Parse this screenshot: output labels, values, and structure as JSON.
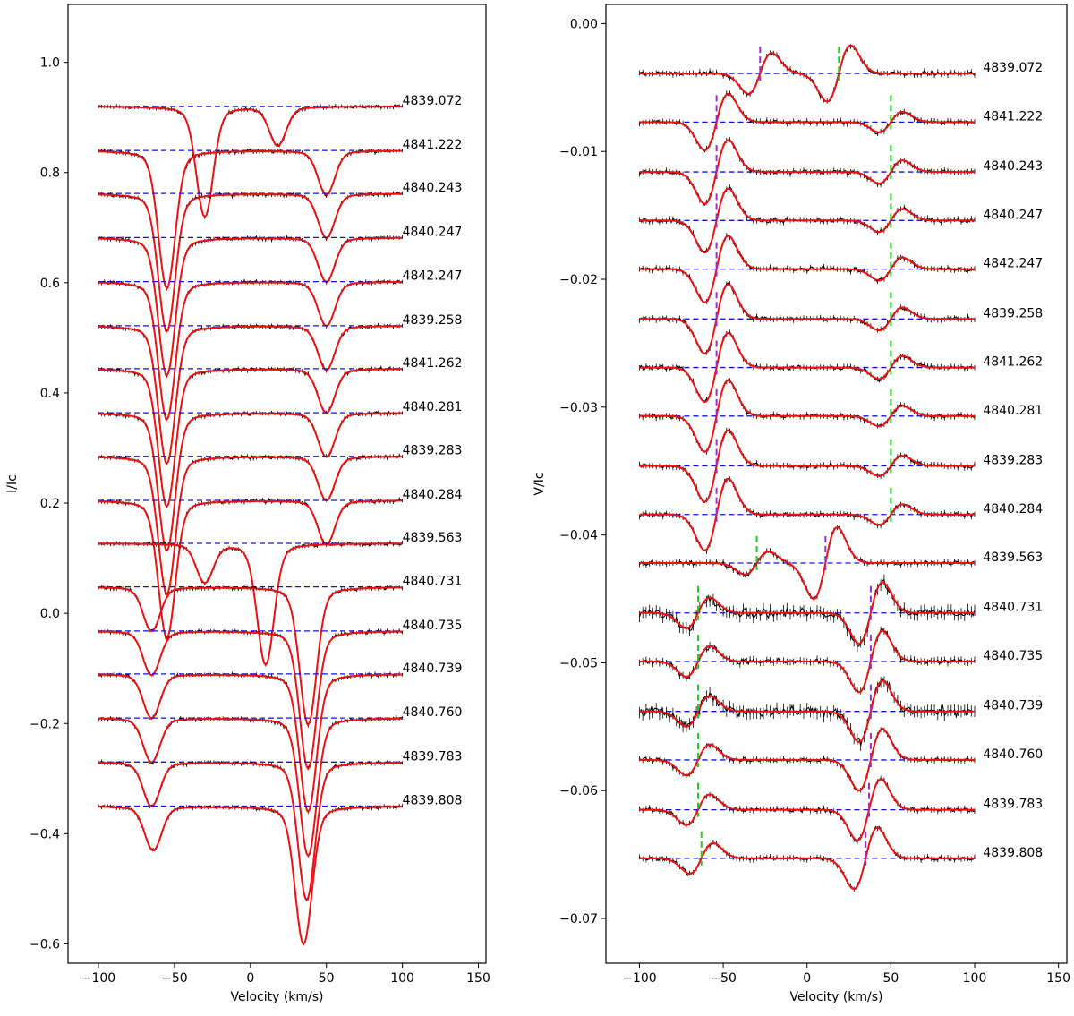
{
  "chart_data": [
    {
      "type": "line",
      "panel": "left",
      "title": "",
      "xlabel": "Velocity (km/s)",
      "ylabel": "I/Ic",
      "xlim": [
        -120,
        155
      ],
      "ylim": [
        -0.635,
        1.105
      ],
      "xticks": [
        -100,
        -50,
        0,
        50,
        100,
        150
      ],
      "yticks": [
        -0.6,
        -0.4,
        -0.2,
        0.0,
        0.2,
        0.4,
        0.6,
        0.8,
        1.0
      ],
      "xtick_labels": [
        "−100",
        "−50",
        "0",
        "50",
        "100",
        "150"
      ],
      "ytick_labels": [
        "−0.6",
        "−0.4",
        "−0.2",
        "0.0",
        "0.2",
        "0.4",
        "0.6",
        "0.8",
        "1.0"
      ],
      "x_range": [
        -100,
        100
      ],
      "phase_label_x": 100,
      "line_width": 8.5,
      "noise": 0.003,
      "series": [
        {
          "name": "4839.072",
          "offset": 0.92,
          "lines": [
            {
              "center": -30,
              "depth": 0.2,
              "width": 5.4
            },
            {
              "center": 18,
              "depth": 0.07,
              "width": 5.4
            }
          ]
        },
        {
          "name": "4841.222",
          "offset": 0.84,
          "lines": [
            {
              "center": -55,
              "depth": 0.25,
              "width": 5.4
            },
            {
              "center": 50,
              "depth": 0.08,
              "width": 5.4
            }
          ]
        },
        {
          "name": "4840.243",
          "offset": 0.762,
          "lines": [
            {
              "center": -55,
              "depth": 0.25,
              "width": 5.4
            },
            {
              "center": 50,
              "depth": 0.08,
              "width": 5.4
            }
          ]
        },
        {
          "name": "4840.247",
          "offset": 0.682,
          "lines": [
            {
              "center": -55,
              "depth": 0.25,
              "width": 5.4
            },
            {
              "center": 50,
              "depth": 0.08,
              "width": 5.4
            }
          ]
        },
        {
          "name": "4842.247",
          "offset": 0.602,
          "lines": [
            {
              "center": -55,
              "depth": 0.25,
              "width": 5.4
            },
            {
              "center": 50,
              "depth": 0.08,
              "width": 5.4
            }
          ]
        },
        {
          "name": "4839.258",
          "offset": 0.522,
          "lines": [
            {
              "center": -55,
              "depth": 0.25,
              "width": 5.4
            },
            {
              "center": 50,
              "depth": 0.08,
              "width": 5.4
            }
          ]
        },
        {
          "name": "4841.262",
          "offset": 0.444,
          "lines": [
            {
              "center": -55,
              "depth": 0.25,
              "width": 5.4
            },
            {
              "center": 50,
              "depth": 0.08,
              "width": 5.4
            }
          ]
        },
        {
          "name": "4840.281",
          "offset": 0.364,
          "lines": [
            {
              "center": -55,
              "depth": 0.25,
              "width": 5.4
            },
            {
              "center": 50,
              "depth": 0.08,
              "width": 5.4
            }
          ]
        },
        {
          "name": "4839.283",
          "offset": 0.285,
          "lines": [
            {
              "center": -55,
              "depth": 0.25,
              "width": 5.4
            },
            {
              "center": 50,
              "depth": 0.08,
              "width": 5.4
            }
          ]
        },
        {
          "name": "4840.284",
          "offset": 0.205,
          "lines": [
            {
              "center": -55,
              "depth": 0.25,
              "width": 5.4
            },
            {
              "center": 50,
              "depth": 0.08,
              "width": 5.4
            }
          ]
        },
        {
          "name": "4839.563",
          "offset": 0.127,
          "lines": [
            {
              "center": -30,
              "depth": 0.07,
              "width": 5.4
            },
            {
              "center": 10,
              "depth": 0.22,
              "width": 5.4
            }
          ]
        },
        {
          "name": "4840.731",
          "offset": 0.048,
          "lines": [
            {
              "center": -65,
              "depth": 0.08,
              "width": 5.4
            },
            {
              "center": 38,
              "depth": 0.25,
              "width": 5.4
            }
          ]
        },
        {
          "name": "4840.735",
          "offset": -0.032,
          "lines": [
            {
              "center": -65,
              "depth": 0.08,
              "width": 5.4
            },
            {
              "center": 38,
              "depth": 0.25,
              "width": 5.4
            }
          ]
        },
        {
          "name": "4840.739",
          "offset": -0.11,
          "lines": [
            {
              "center": -65,
              "depth": 0.08,
              "width": 5.4
            },
            {
              "center": 38,
              "depth": 0.25,
              "width": 5.4
            }
          ]
        },
        {
          "name": "4840.760",
          "offset": -0.19,
          "lines": [
            {
              "center": -65,
              "depth": 0.08,
              "width": 5.4
            },
            {
              "center": 38,
              "depth": 0.25,
              "width": 5.4
            }
          ]
        },
        {
          "name": "4839.783",
          "offset": -0.27,
          "lines": [
            {
              "center": -65,
              "depth": 0.08,
              "width": 5.4
            },
            {
              "center": 37,
              "depth": 0.25,
              "width": 5.4
            }
          ]
        },
        {
          "name": "4839.808",
          "offset": -0.35,
          "lines": [
            {
              "center": -64,
              "depth": 0.08,
              "width": 5.4
            },
            {
              "center": 35,
              "depth": 0.25,
              "width": 5.4
            }
          ]
        }
      ]
    },
    {
      "type": "line",
      "panel": "right",
      "title": "",
      "xlabel": "Velocity (km/s)",
      "ylabel": "V/Ic",
      "xlim": [
        -120,
        155
      ],
      "ylim": [
        -0.0735,
        0.0015
      ],
      "xticks": [
        -100,
        -50,
        0,
        50,
        100,
        150
      ],
      "yticks": [
        -0.07,
        -0.06,
        -0.05,
        -0.04,
        -0.03,
        -0.02,
        -0.01,
        0.0
      ],
      "xtick_labels": [
        "−100",
        "−50",
        "0",
        "50",
        "100",
        "150"
      ],
      "ytick_labels": [
        "−0.07",
        "−0.06",
        "−0.05",
        "−0.04",
        "−0.03",
        "−0.02",
        "−0.01",
        "0.00"
      ],
      "x_range": [
        -100,
        100
      ],
      "phase_label_x": 105,
      "line_width": 7,
      "noise": 0.00018,
      "series": [
        {
          "name": "4839.072",
          "offset": -0.0039,
          "noise_mult": 1,
          "lines": [
            {
              "center": -28,
              "amp": 0.0016
            },
            {
              "center": 19,
              "amp": 0.0022
            }
          ],
          "markers": [
            {
              "x": -28,
              "color": "#9b30c8"
            },
            {
              "x": 19,
              "color": "#22cc22"
            }
          ]
        },
        {
          "name": "4841.222",
          "offset": -0.0077,
          "noise_mult": 1,
          "lines": [
            {
              "center": -54,
              "amp": 0.0022
            },
            {
              "center": 50,
              "amp": 0.0008
            }
          ],
          "markers": [
            {
              "x": -54,
              "color": "#9b30c8"
            },
            {
              "x": 50,
              "color": "#22cc22"
            }
          ]
        },
        {
          "name": "4840.243",
          "offset": -0.0116,
          "noise_mult": 1,
          "lines": [
            {
              "center": -54,
              "amp": 0.0025
            },
            {
              "center": 50,
              "amp": 0.0009
            }
          ],
          "markers": [
            {
              "x": -54,
              "color": "#9b30c8"
            },
            {
              "x": 50,
              "color": "#22cc22"
            }
          ]
        },
        {
          "name": "4840.247",
          "offset": -0.0154,
          "noise_mult": 1,
          "lines": [
            {
              "center": -54,
              "amp": 0.0025
            },
            {
              "center": 50,
              "amp": 0.0009
            }
          ],
          "markers": [
            {
              "x": -54,
              "color": "#9b30c8"
            },
            {
              "x": 50,
              "color": "#22cc22"
            }
          ]
        },
        {
          "name": "4842.247",
          "offset": -0.0192,
          "noise_mult": 1,
          "lines": [
            {
              "center": -54,
              "amp": 0.0026
            },
            {
              "center": 50,
              "amp": 0.0009
            }
          ],
          "markers": [
            {
              "x": -54,
              "color": "#9b30c8"
            },
            {
              "x": 50,
              "color": "#22cc22"
            }
          ]
        },
        {
          "name": "4839.258",
          "offset": -0.0231,
          "noise_mult": 1,
          "lines": [
            {
              "center": -54,
              "amp": 0.0027
            },
            {
              "center": 50,
              "amp": 0.0009
            }
          ],
          "markers": [
            {
              "x": -54,
              "color": "#9b30c8"
            },
            {
              "x": 50,
              "color": "#22cc22"
            }
          ]
        },
        {
          "name": "4841.262",
          "offset": -0.0269,
          "noise_mult": 1,
          "lines": [
            {
              "center": -54,
              "amp": 0.0027
            },
            {
              "center": 50,
              "amp": 0.0009
            }
          ],
          "markers": [
            {
              "x": -54,
              "color": "#9b30c8"
            },
            {
              "x": 50,
              "color": "#22cc22"
            }
          ]
        },
        {
          "name": "4840.281",
          "offset": -0.0307,
          "noise_mult": 1,
          "lines": [
            {
              "center": -54,
              "amp": 0.0028
            },
            {
              "center": 50,
              "amp": 0.0008
            }
          ],
          "markers": [
            {
              "x": -54,
              "color": "#9b30c8"
            },
            {
              "x": 50,
              "color": "#22cc22"
            }
          ]
        },
        {
          "name": "4839.283",
          "offset": -0.0346,
          "noise_mult": 1,
          "lines": [
            {
              "center": -54,
              "amp": 0.0028
            },
            {
              "center": 50,
              "amp": 0.0008
            }
          ],
          "markers": [
            {
              "x": -54,
              "color": "#9b30c8"
            },
            {
              "x": 50,
              "color": "#22cc22"
            }
          ]
        },
        {
          "name": "4840.284",
          "offset": -0.0384,
          "noise_mult": 1,
          "lines": [
            {
              "center": -54,
              "amp": 0.0028
            },
            {
              "center": 50,
              "amp": 0.0008
            }
          ],
          "markers": [
            {
              "x": -54,
              "color": "#9b30c8"
            },
            {
              "x": 50,
              "color": "#22cc22"
            }
          ]
        },
        {
          "name": "4839.563",
          "offset": -0.0422,
          "noise_mult": 1,
          "lines": [
            {
              "center": -30,
              "amp": 0.0009
            },
            {
              "center": 11,
              "amp": 0.0028
            }
          ],
          "markers": [
            {
              "x": -30,
              "color": "#22cc22"
            },
            {
              "x": 11,
              "color": "#9b30c8"
            }
          ]
        },
        {
          "name": "4840.731",
          "offset": -0.0461,
          "noise_mult": 2.2,
          "lines": [
            {
              "center": -65,
              "amp": 0.0012
            },
            {
              "center": 38,
              "amp": 0.0024
            }
          ],
          "markers": [
            {
              "x": -65,
              "color": "#22cc22"
            },
            {
              "x": 38,
              "color": "#9b30c8"
            }
          ]
        },
        {
          "name": "4840.735",
          "offset": -0.0499,
          "noise_mult": 1.3,
          "lines": [
            {
              "center": -65,
              "amp": 0.0012
            },
            {
              "center": 38,
              "amp": 0.0024
            }
          ],
          "markers": [
            {
              "x": -65,
              "color": "#22cc22"
            },
            {
              "x": 38,
              "color": "#9b30c8"
            }
          ]
        },
        {
          "name": "4840.739",
          "offset": -0.0538,
          "noise_mult": 2.2,
          "lines": [
            {
              "center": -65,
              "amp": 0.0012
            },
            {
              "center": 38,
              "amp": 0.0024
            }
          ],
          "markers": [
            {
              "x": -65,
              "color": "#22cc22"
            },
            {
              "x": 38,
              "color": "#9b30c8"
            }
          ]
        },
        {
          "name": "4840.760",
          "offset": -0.0576,
          "noise_mult": 1,
          "lines": [
            {
              "center": -65,
              "amp": 0.0012
            },
            {
              "center": 38,
              "amp": 0.0024
            }
          ],
          "markers": [
            {
              "x": -65,
              "color": "#22cc22"
            },
            {
              "x": 38,
              "color": "#9b30c8"
            }
          ]
        },
        {
          "name": "4839.783",
          "offset": -0.0615,
          "noise_mult": 1,
          "lines": [
            {
              "center": -65,
              "amp": 0.0012
            },
            {
              "center": 37,
              "amp": 0.0024
            }
          ],
          "markers": [
            {
              "x": -65,
              "color": "#22cc22"
            },
            {
              "x": 37,
              "color": "#9b30c8"
            }
          ]
        },
        {
          "name": "4839.808",
          "offset": -0.0653,
          "noise_mult": 1,
          "lines": [
            {
              "center": -63,
              "amp": 0.0012
            },
            {
              "center": 35,
              "amp": 0.0024
            }
          ],
          "markers": [
            {
              "x": -63,
              "color": "#22cc22"
            },
            {
              "x": 35,
              "color": "#9b30c8"
            }
          ]
        }
      ]
    }
  ],
  "colors": {
    "observed": "#000000",
    "model": "#ee1111",
    "baseline": "#1111dd",
    "marker_primary": "#9b30c8",
    "marker_secondary": "#22cc22",
    "axes": "#000000",
    "background": "#ffffff"
  }
}
